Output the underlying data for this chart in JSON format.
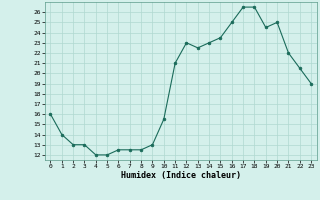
{
  "x": [
    0,
    1,
    2,
    3,
    4,
    5,
    6,
    7,
    8,
    9,
    10,
    11,
    12,
    13,
    14,
    15,
    16,
    17,
    18,
    19,
    20,
    21,
    22,
    23
  ],
  "y": [
    16,
    14,
    13,
    13,
    12,
    12,
    12.5,
    12.5,
    12.5,
    13,
    15.5,
    21,
    23,
    22.5,
    23,
    23.5,
    25,
    26.5,
    26.5,
    24.5,
    25,
    22,
    20.5,
    19
  ],
  "line_color": "#1a6b5a",
  "marker_color": "#1a6b5a",
  "bg_color": "#d4f0eb",
  "grid_color": "#b0d8d0",
  "xlabel": "Humidex (Indice chaleur)",
  "ylim": [
    11.5,
    27
  ],
  "yticks": [
    12,
    13,
    14,
    15,
    16,
    17,
    18,
    19,
    20,
    21,
    22,
    23,
    24,
    25,
    26
  ],
  "xticks": [
    0,
    1,
    2,
    3,
    4,
    5,
    6,
    7,
    8,
    9,
    10,
    11,
    12,
    13,
    14,
    15,
    16,
    17,
    18,
    19,
    20,
    21,
    22,
    23
  ],
  "xlim": [
    -0.5,
    23.5
  ]
}
